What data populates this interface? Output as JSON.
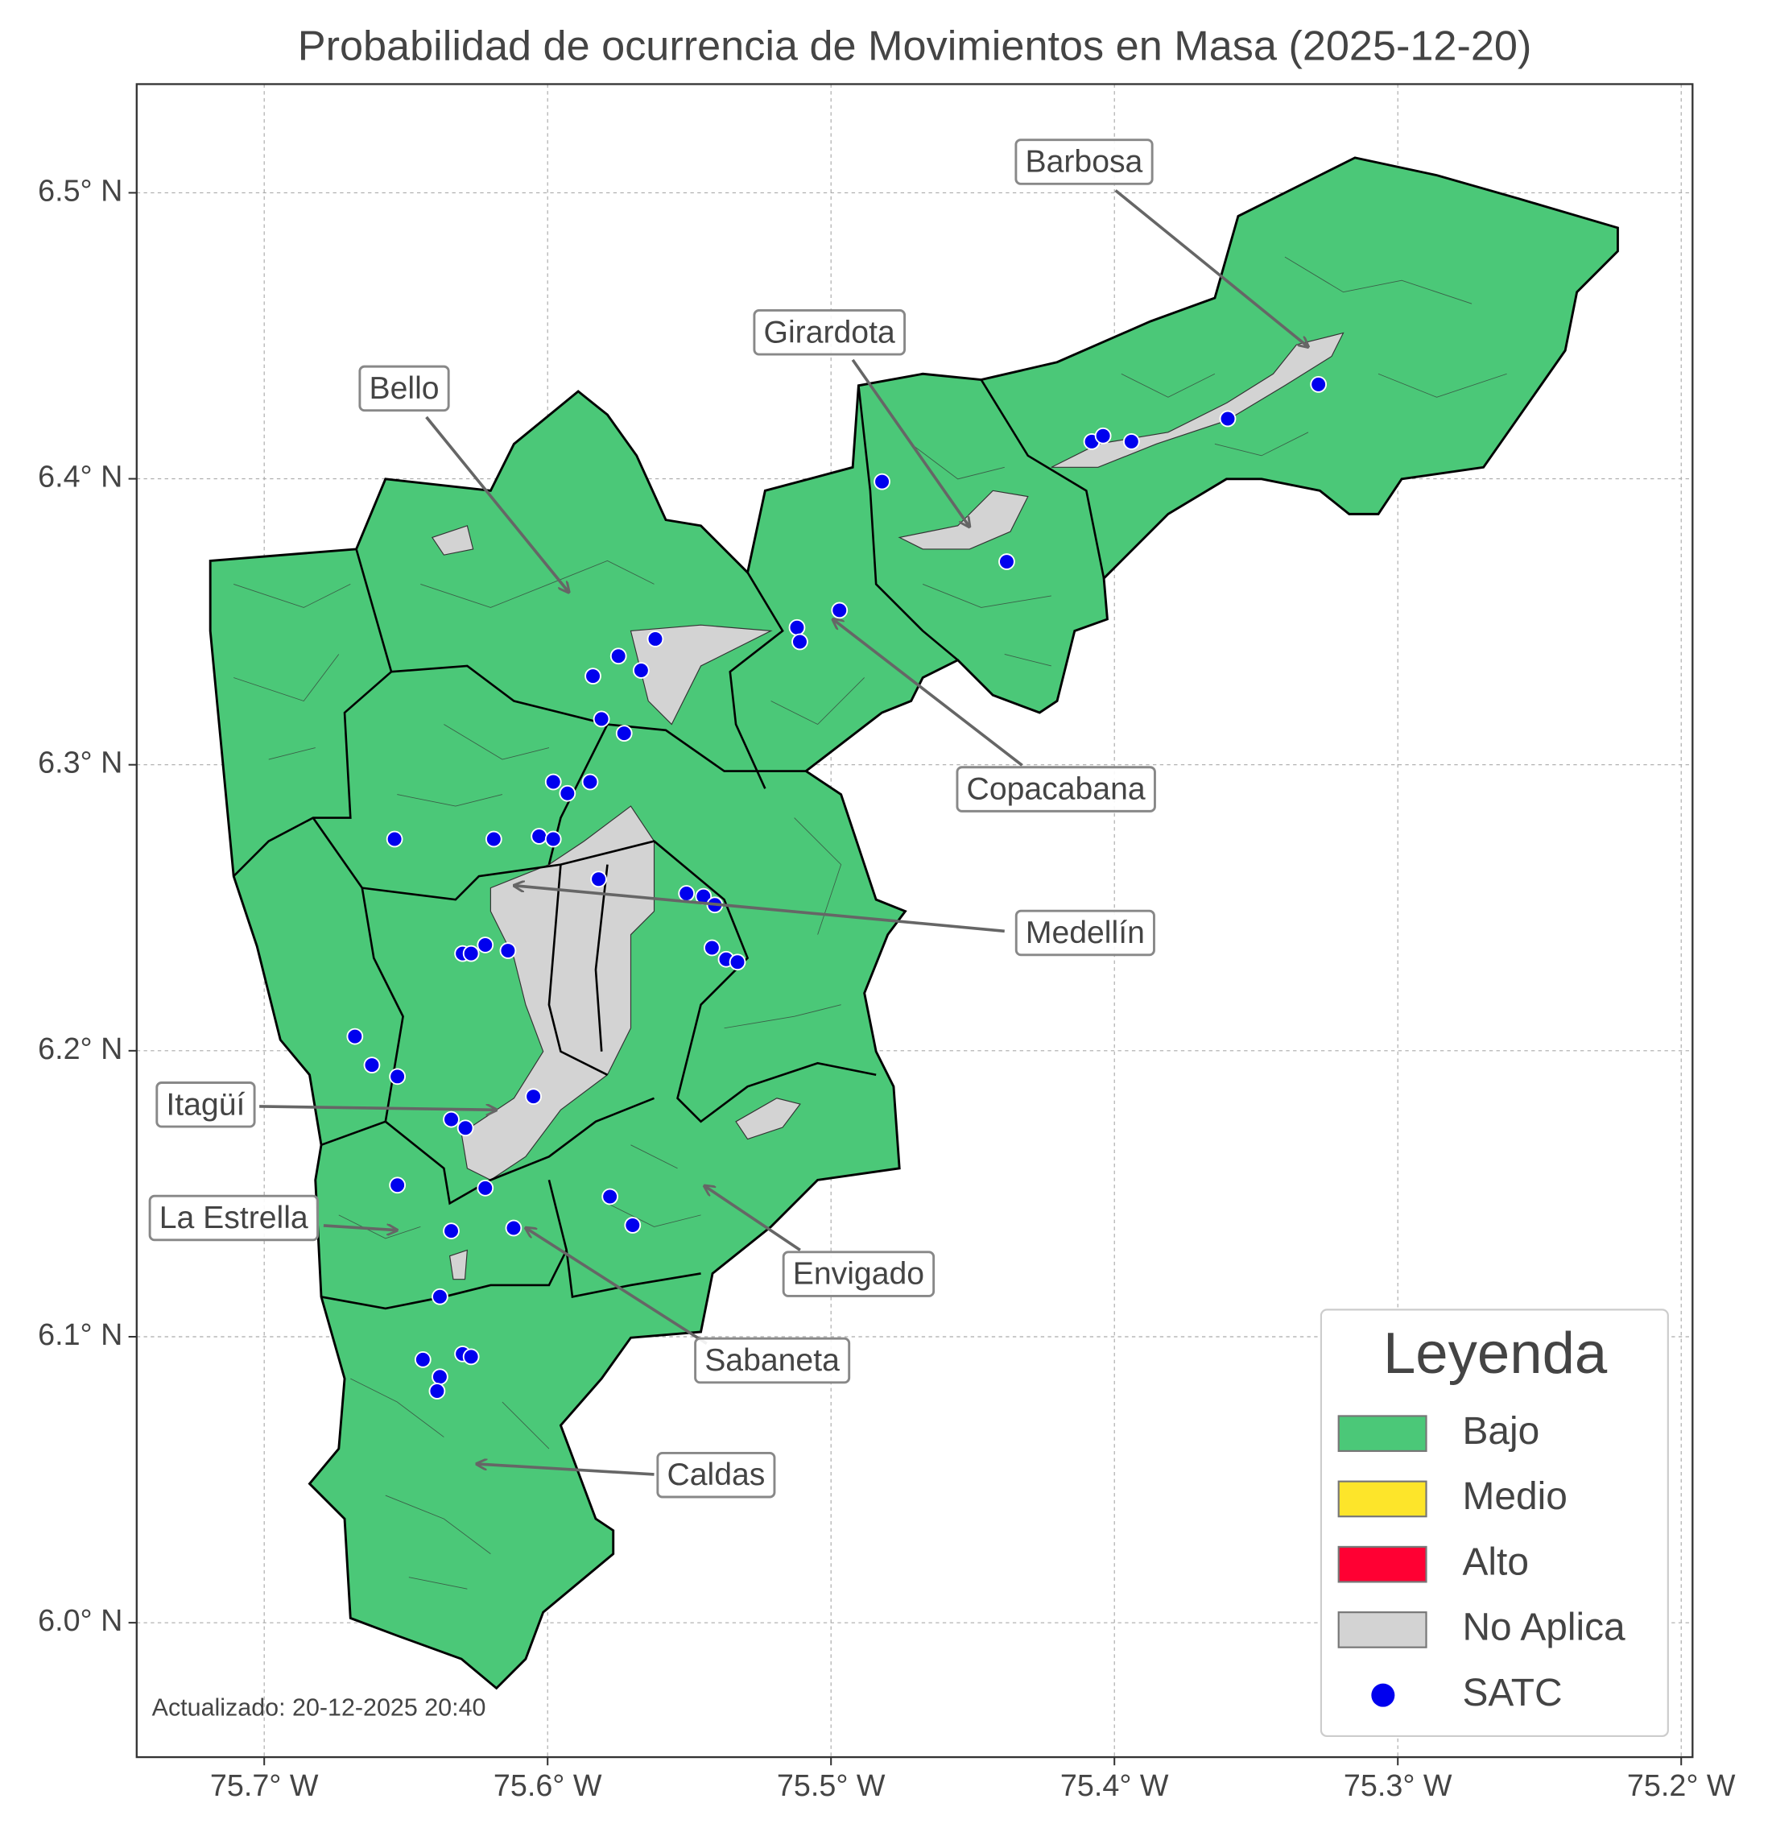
{
  "map": {
    "title": "Probabilidad de ocurrencia de Movimientos en Masa (2025-12-20)",
    "xlim": [
      -75.745,
      -75.196
    ],
    "ylim": [
      5.953,
      6.538
    ],
    "xticks": [
      {
        "value": -75.7,
        "label": "75.7° W"
      },
      {
        "value": -75.6,
        "label": "75.6° W"
      },
      {
        "value": -75.5,
        "label": "75.5° W"
      },
      {
        "value": -75.4,
        "label": "75.4° W"
      },
      {
        "value": -75.3,
        "label": "75.3° W"
      },
      {
        "value": -75.2,
        "label": "75.2° W"
      }
    ],
    "yticks": [
      {
        "value": 6.0,
        "label": "6.0° N"
      },
      {
        "value": 6.1,
        "label": "6.1° N"
      },
      {
        "value": 6.2,
        "label": "6.2° N"
      },
      {
        "value": 6.3,
        "label": "6.3° N"
      },
      {
        "value": 6.4,
        "label": "6.4° N"
      },
      {
        "value": 6.5,
        "label": "6.5° N"
      }
    ],
    "grid": true,
    "annotations": [
      "Barbosa",
      "Girardota",
      "Bello",
      "Copacabana",
      "Medellín",
      "Itagüí",
      "La Estrella",
      "Envigado",
      "Sabaneta",
      "Caldas"
    ],
    "legend": {
      "title": "Leyenda",
      "items": [
        {
          "name": "Bajo",
          "color": "#4bc878",
          "marker": "patch"
        },
        {
          "name": "Medio",
          "color": "#fde52a",
          "marker": "patch"
        },
        {
          "name": "Alto",
          "color": "#ff0033",
          "marker": "patch"
        },
        {
          "name": "No Aplica",
          "color": "#d3d3d3",
          "marker": "patch"
        },
        {
          "name": "SATC",
          "color": "#0000ee",
          "marker": "circle"
        }
      ]
    },
    "satc": {
      "lon": [
        -75.482,
        -75.408,
        -75.404,
        -75.394,
        -75.36,
        -75.328,
        -75.438,
        -75.497,
        -75.512,
        -75.511,
        -75.562,
        -75.567,
        -75.575,
        -75.584,
        -75.581,
        -75.573,
        -75.598,
        -75.593,
        -75.585,
        -75.654,
        -75.619,
        -75.603,
        -75.598,
        -75.582,
        -75.551,
        -75.545,
        -75.541,
        -75.542,
        -75.537,
        -75.533,
        -75.622,
        -75.63,
        -75.627,
        -75.614,
        -75.668,
        -75.662,
        -75.653,
        -75.605,
        -75.634,
        -75.629,
        -75.653,
        -75.622,
        -75.578,
        -75.57,
        -75.634,
        -75.612,
        -75.638,
        -75.644,
        -75.638,
        -75.639,
        -75.63,
        -75.627
      ],
      "lat": [
        6.399,
        6.413,
        6.415,
        6.413,
        6.421,
        6.433,
        6.371,
        6.354,
        6.348,
        6.343,
        6.344,
        6.333,
        6.338,
        6.331,
        6.316,
        6.311,
        6.294,
        6.29,
        6.294,
        6.274,
        6.274,
        6.275,
        6.274,
        6.26,
        6.255,
        6.254,
        6.251,
        6.236,
        6.232,
        6.231,
        6.237,
        6.234,
        6.234,
        6.235,
        6.205,
        6.195,
        6.191,
        6.184,
        6.176,
        6.173,
        6.153,
        6.152,
        6.149,
        6.139,
        6.137,
        6.138,
        6.114,
        6.092,
        6.086,
        6.081,
        6.094,
        6.093
      ]
    },
    "footer": "Actualizado: 20-12-2025 20:40"
  }
}
